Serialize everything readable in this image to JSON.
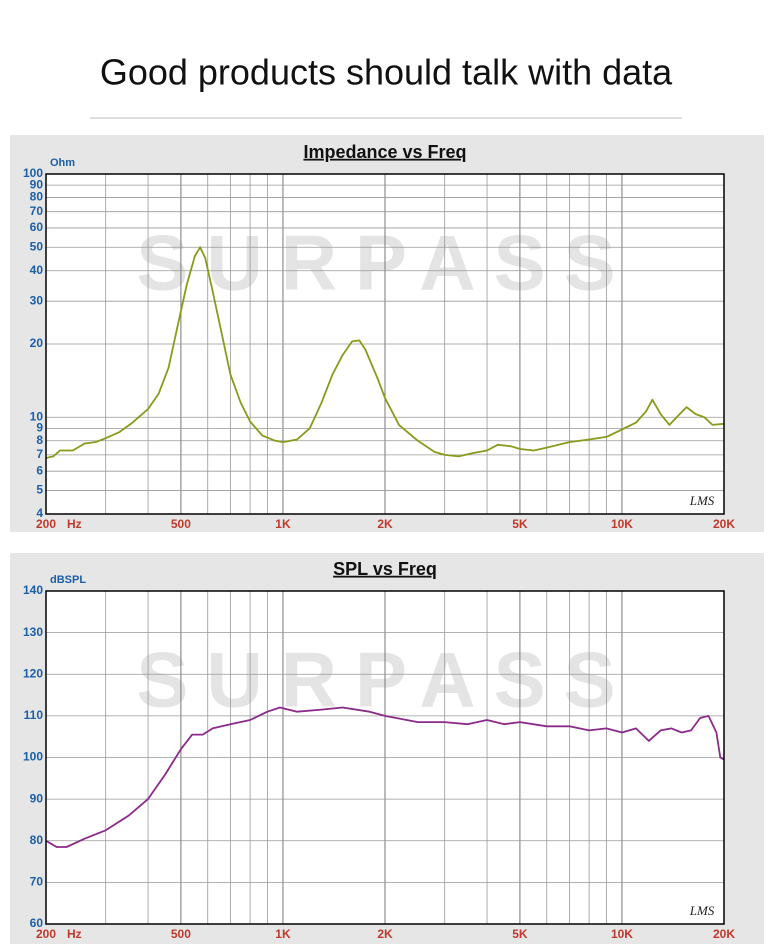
{
  "header": {
    "title": "Good products should talk with data"
  },
  "chart_data": [
    {
      "type": "line",
      "title": "Impedance vs Freq",
      "ylabel": "Ohm",
      "xlabel": "Hz",
      "watermark": "SURPASS",
      "logo": "LMS",
      "xscale": "log",
      "yscale": "log",
      "color": "#8a9a1a",
      "grid": true,
      "xlim": [
        200,
        20000
      ],
      "ylim": [
        4,
        100
      ],
      "xticks": [
        200,
        500,
        {
          "value": 1000,
          "label": "1K"
        },
        {
          "value": 2000,
          "label": "2K"
        },
        {
          "value": 5000,
          "label": "5K"
        },
        {
          "value": 10000,
          "label": "10K"
        },
        {
          "value": 20000,
          "label": "20K"
        }
      ],
      "x_grid": [
        300,
        400,
        600,
        700,
        800,
        900,
        3000,
        4000,
        6000,
        7000,
        8000,
        9000
      ],
      "yticks": [
        4,
        5,
        6,
        7,
        8,
        9,
        10,
        20,
        30,
        40,
        50,
        60,
        70,
        80,
        90,
        100
      ],
      "x": [
        200,
        210,
        220,
        240,
        260,
        280,
        300,
        330,
        360,
        400,
        430,
        460,
        490,
        520,
        550,
        570,
        590,
        620,
        660,
        700,
        750,
        800,
        870,
        950,
        1000,
        1100,
        1200,
        1300,
        1400,
        1500,
        1600,
        1680,
        1750,
        1900,
        2000,
        2200,
        2500,
        2800,
        3000,
        3300,
        3600,
        4000,
        4300,
        4700,
        5000,
        5500,
        6000,
        7000,
        8000,
        9000,
        10000,
        11000,
        11800,
        12300,
        13000,
        13800,
        14800,
        15500,
        16500,
        17500,
        18500,
        20000
      ],
      "values": [
        6.8,
        6.9,
        7.3,
        7.3,
        7.8,
        7.9,
        8.2,
        8.7,
        9.5,
        10.8,
        12.5,
        16,
        24,
        35,
        46,
        50,
        45,
        33,
        22,
        15,
        11.5,
        9.6,
        8.4,
        8.0,
        7.9,
        8.1,
        9.0,
        11.5,
        15,
        18,
        20.5,
        20.7,
        19,
        14.5,
        12,
        9.3,
        8.0,
        7.2,
        7.0,
        6.9,
        7.1,
        7.3,
        7.7,
        7.6,
        7.4,
        7.3,
        7.5,
        7.9,
        8.1,
        8.3,
        8.9,
        9.5,
        10.6,
        11.8,
        10.3,
        9.3,
        10.3,
        11.0,
        10.3,
        10.0,
        9.3,
        9.4
      ]
    },
    {
      "type": "line",
      "title": "SPL vs Freq",
      "ylabel": "dBSPL",
      "xlabel": "Hz",
      "watermark": "SURPASS",
      "logo": "LMS",
      "xscale": "log",
      "yscale": "linear",
      "color": "#8b2a8b",
      "grid": true,
      "xlim": [
        200,
        20000
      ],
      "ylim": [
        60,
        140
      ],
      "xticks": [
        200,
        500,
        {
          "value": 1000,
          "label": "1K"
        },
        {
          "value": 2000,
          "label": "2K"
        },
        {
          "value": 5000,
          "label": "5K"
        },
        {
          "value": 10000,
          "label": "10K"
        },
        {
          "value": 20000,
          "label": "20K"
        }
      ],
      "x_grid": [
        300,
        400,
        600,
        700,
        800,
        900,
        3000,
        4000,
        6000,
        7000,
        8000,
        9000
      ],
      "yticks": [
        60,
        70,
        80,
        90,
        100,
        110,
        120,
        130,
        140
      ],
      "x": [
        200,
        215,
        230,
        260,
        300,
        350,
        400,
        450,
        500,
        540,
        580,
        620,
        700,
        800,
        900,
        980,
        1100,
        1300,
        1500,
        1800,
        2000,
        2500,
        3000,
        3500,
        4000,
        4500,
        5000,
        6000,
        7000,
        8000,
        9000,
        10000,
        11000,
        12000,
        13000,
        14000,
        15000,
        16000,
        17000,
        18000,
        19000,
        19500,
        20000
      ],
      "values": [
        80,
        78.5,
        78.5,
        80.5,
        82.5,
        86,
        90,
        96,
        102,
        105.5,
        105.5,
        107,
        108,
        109,
        111,
        112,
        111,
        111.5,
        112,
        111,
        110,
        108.5,
        108.5,
        108,
        109,
        108,
        108.5,
        107.5,
        107.5,
        106.5,
        107,
        106,
        107,
        104,
        106.5,
        107,
        106,
        106.5,
        109.5,
        110,
        106,
        100,
        99.5
      ]
    }
  ]
}
